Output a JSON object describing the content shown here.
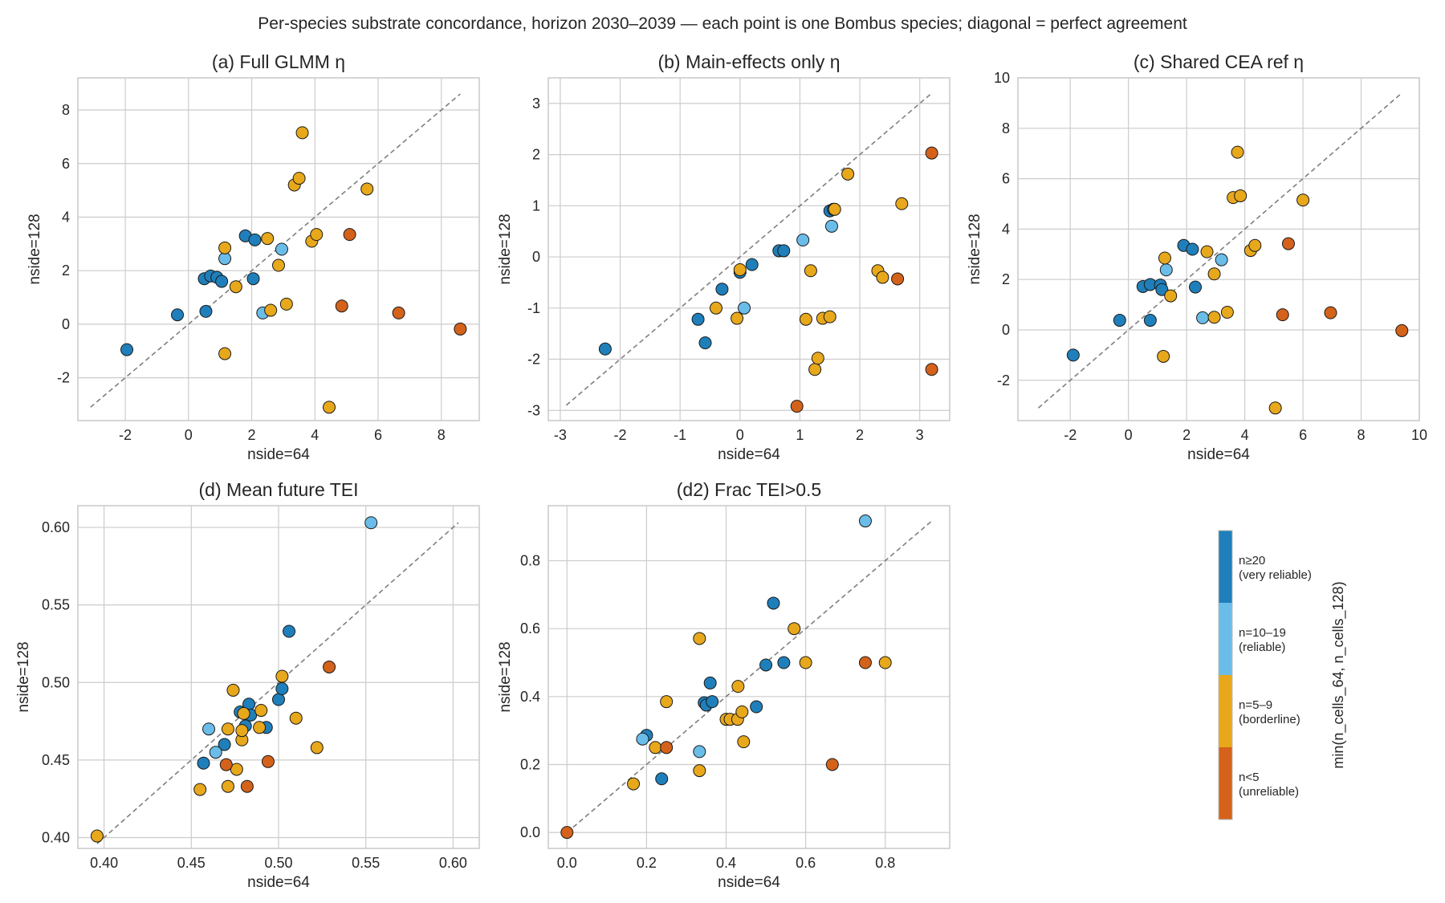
{
  "suptitle": "Per-species substrate concordance, horizon 2030–2039 — each point is one Bombus species; diagonal = perfect agreement",
  "colors": {
    "very_reliable": "#1f7fba",
    "reliable": "#6bbde9",
    "borderline": "#e8a81b",
    "unreliable": "#d4621a",
    "diagonal": "#7f7f7f",
    "grid": "#cccccc"
  },
  "colorbar": {
    "title": "min(n_cells_64, n_cells_128)",
    "labels": [
      {
        "line1": "n≥20",
        "line2": "(very reliable)"
      },
      {
        "line1": "n=10–19",
        "line2": "(reliable)"
      },
      {
        "line1": "n=5–9",
        "line2": "(borderline)"
      },
      {
        "line1": "n<5",
        "line2": "(unreliable)"
      }
    ]
  },
  "chart_data": [
    {
      "id": "a",
      "type": "scatter",
      "title": "(a) Full GLMM η",
      "xlabel": "nside=64",
      "ylabel": "nside=128",
      "xlim": [
        -3.5,
        9.2
      ],
      "ylim": [
        -3.6,
        9.2
      ],
      "xticks": [
        -2,
        0,
        2,
        4,
        6,
        8
      ],
      "yticks": [
        -2,
        0,
        2,
        4,
        6,
        8
      ],
      "diagonal": [
        -3.1,
        8.6
      ],
      "grid": true,
      "points": [
        {
          "x": -1.95,
          "y": -0.95,
          "c": "very_reliable"
        },
        {
          "x": -0.35,
          "y": 0.35,
          "c": "very_reliable"
        },
        {
          "x": 0.55,
          "y": 0.48,
          "c": "very_reliable"
        },
        {
          "x": 0.5,
          "y": 1.7,
          "c": "very_reliable"
        },
        {
          "x": 0.7,
          "y": 1.8,
          "c": "very_reliable"
        },
        {
          "x": 0.9,
          "y": 1.75,
          "c": "very_reliable"
        },
        {
          "x": 1.05,
          "y": 1.6,
          "c": "very_reliable"
        },
        {
          "x": 1.8,
          "y": 3.3,
          "c": "very_reliable"
        },
        {
          "x": 2.1,
          "y": 3.15,
          "c": "very_reliable"
        },
        {
          "x": 2.05,
          "y": 1.7,
          "c": "very_reliable"
        },
        {
          "x": 1.15,
          "y": 2.45,
          "c": "reliable"
        },
        {
          "x": 2.95,
          "y": 2.8,
          "c": "reliable"
        },
        {
          "x": 2.35,
          "y": 0.42,
          "c": "reliable"
        },
        {
          "x": 1.15,
          "y": 2.85,
          "c": "borderline"
        },
        {
          "x": 1.5,
          "y": 1.4,
          "c": "borderline"
        },
        {
          "x": 1.15,
          "y": -1.1,
          "c": "borderline"
        },
        {
          "x": 2.5,
          "y": 3.2,
          "c": "borderline"
        },
        {
          "x": 2.6,
          "y": 0.52,
          "c": "borderline"
        },
        {
          "x": 2.85,
          "y": 2.2,
          "c": "borderline"
        },
        {
          "x": 3.1,
          "y": 0.75,
          "c": "borderline"
        },
        {
          "x": 3.35,
          "y": 5.2,
          "c": "borderline"
        },
        {
          "x": 3.5,
          "y": 5.45,
          "c": "borderline"
        },
        {
          "x": 3.6,
          "y": 7.15,
          "c": "borderline"
        },
        {
          "x": 3.9,
          "y": 3.1,
          "c": "borderline"
        },
        {
          "x": 4.05,
          "y": 3.35,
          "c": "borderline"
        },
        {
          "x": 4.45,
          "y": -3.1,
          "c": "borderline"
        },
        {
          "x": 5.65,
          "y": 5.05,
          "c": "borderline"
        },
        {
          "x": 4.85,
          "y": 0.68,
          "c": "unreliable"
        },
        {
          "x": 5.1,
          "y": 3.35,
          "c": "unreliable"
        },
        {
          "x": 6.65,
          "y": 0.42,
          "c": "unreliable"
        },
        {
          "x": 8.6,
          "y": -0.18,
          "c": "unreliable"
        }
      ]
    },
    {
      "id": "b",
      "type": "scatter",
      "title": "(b) Main-effects only η",
      "xlabel": "nside=64",
      "ylabel": "nside=128",
      "xlim": [
        -3.2,
        3.5
      ],
      "ylim": [
        -3.2,
        3.5
      ],
      "xticks": [
        -3,
        -2,
        -1,
        0,
        1,
        2,
        3
      ],
      "yticks": [
        -3,
        -2,
        -1,
        0,
        1,
        2,
        3
      ],
      "diagonal": [
        -2.9,
        3.2
      ],
      "grid": true,
      "points": [
        {
          "x": -2.25,
          "y": -1.8,
          "c": "very_reliable"
        },
        {
          "x": -0.7,
          "y": -1.22,
          "c": "very_reliable"
        },
        {
          "x": -0.58,
          "y": -1.68,
          "c": "very_reliable"
        },
        {
          "x": -0.3,
          "y": -0.63,
          "c": "very_reliable"
        },
        {
          "x": 0.0,
          "y": -0.3,
          "c": "very_reliable"
        },
        {
          "x": 0.2,
          "y": -0.15,
          "c": "very_reliable"
        },
        {
          "x": 0.65,
          "y": 0.12,
          "c": "very_reliable"
        },
        {
          "x": 0.73,
          "y": 0.12,
          "c": "very_reliable"
        },
        {
          "x": 1.5,
          "y": 0.9,
          "c": "very_reliable"
        },
        {
          "x": 1.56,
          "y": 0.93,
          "c": "very_reliable"
        },
        {
          "x": 0.07,
          "y": -1.0,
          "c": "reliable"
        },
        {
          "x": 1.05,
          "y": 0.33,
          "c": "reliable"
        },
        {
          "x": 1.53,
          "y": 0.6,
          "c": "reliable"
        },
        {
          "x": -0.4,
          "y": -1.0,
          "c": "borderline"
        },
        {
          "x": -0.05,
          "y": -1.2,
          "c": "borderline"
        },
        {
          "x": 0.0,
          "y": -0.25,
          "c": "borderline"
        },
        {
          "x": 1.1,
          "y": -1.22,
          "c": "borderline"
        },
        {
          "x": 1.18,
          "y": -0.27,
          "c": "borderline"
        },
        {
          "x": 1.25,
          "y": -2.2,
          "c": "borderline"
        },
        {
          "x": 1.3,
          "y": -1.98,
          "c": "borderline"
        },
        {
          "x": 1.38,
          "y": -1.2,
          "c": "borderline"
        },
        {
          "x": 1.5,
          "y": -1.17,
          "c": "borderline"
        },
        {
          "x": 1.58,
          "y": 0.93,
          "c": "borderline"
        },
        {
          "x": 1.8,
          "y": 1.62,
          "c": "borderline"
        },
        {
          "x": 2.3,
          "y": -0.27,
          "c": "borderline"
        },
        {
          "x": 2.38,
          "y": -0.4,
          "c": "borderline"
        },
        {
          "x": 2.7,
          "y": 1.04,
          "c": "borderline"
        },
        {
          "x": 0.95,
          "y": -2.92,
          "c": "unreliable"
        },
        {
          "x": 2.63,
          "y": -0.43,
          "c": "unreliable"
        },
        {
          "x": 3.2,
          "y": 2.03,
          "c": "unreliable"
        },
        {
          "x": 3.2,
          "y": -2.2,
          "c": "unreliable"
        }
      ]
    },
    {
      "id": "c",
      "type": "scatter",
      "title": "(c) Shared CEA ref η",
      "xlabel": "nside=64",
      "ylabel": "nside=128",
      "xlim": [
        -3.8,
        10.0
      ],
      "ylim": [
        -3.6,
        10.0
      ],
      "xticks": [
        -2,
        0,
        2,
        4,
        6,
        8,
        10
      ],
      "yticks": [
        -2,
        0,
        2,
        4,
        6,
        8,
        10
      ],
      "diagonal": [
        -3.1,
        9.4
      ],
      "grid": true,
      "points": [
        {
          "x": -1.9,
          "y": -1.0,
          "c": "very_reliable"
        },
        {
          "x": -0.3,
          "y": 0.38,
          "c": "very_reliable"
        },
        {
          "x": 0.5,
          "y": 1.72,
          "c": "very_reliable"
        },
        {
          "x": 0.75,
          "y": 1.8,
          "c": "very_reliable"
        },
        {
          "x": 0.75,
          "y": 0.38,
          "c": "very_reliable"
        },
        {
          "x": 1.1,
          "y": 1.78,
          "c": "very_reliable"
        },
        {
          "x": 1.15,
          "y": 1.6,
          "c": "very_reliable"
        },
        {
          "x": 1.9,
          "y": 3.35,
          "c": "very_reliable"
        },
        {
          "x": 2.2,
          "y": 3.2,
          "c": "very_reliable"
        },
        {
          "x": 2.3,
          "y": 1.7,
          "c": "very_reliable"
        },
        {
          "x": 1.3,
          "y": 2.38,
          "c": "reliable"
        },
        {
          "x": 2.55,
          "y": 0.48,
          "c": "reliable"
        },
        {
          "x": 3.2,
          "y": 2.78,
          "c": "reliable"
        },
        {
          "x": 1.25,
          "y": 2.85,
          "c": "borderline"
        },
        {
          "x": 1.45,
          "y": 1.35,
          "c": "borderline"
        },
        {
          "x": 1.2,
          "y": -1.05,
          "c": "borderline"
        },
        {
          "x": 2.7,
          "y": 3.1,
          "c": "borderline"
        },
        {
          "x": 2.95,
          "y": 2.22,
          "c": "borderline"
        },
        {
          "x": 2.95,
          "y": 0.5,
          "c": "borderline"
        },
        {
          "x": 3.4,
          "y": 0.7,
          "c": "borderline"
        },
        {
          "x": 3.6,
          "y": 5.25,
          "c": "borderline"
        },
        {
          "x": 3.75,
          "y": 7.05,
          "c": "borderline"
        },
        {
          "x": 3.85,
          "y": 5.32,
          "c": "borderline"
        },
        {
          "x": 4.2,
          "y": 3.15,
          "c": "borderline"
        },
        {
          "x": 4.35,
          "y": 3.35,
          "c": "borderline"
        },
        {
          "x": 5.05,
          "y": -3.1,
          "c": "borderline"
        },
        {
          "x": 6.0,
          "y": 5.15,
          "c": "borderline"
        },
        {
          "x": 5.3,
          "y": 0.6,
          "c": "unreliable"
        },
        {
          "x": 5.5,
          "y": 3.42,
          "c": "unreliable"
        },
        {
          "x": 6.95,
          "y": 0.68,
          "c": "unreliable"
        },
        {
          "x": 9.4,
          "y": -0.03,
          "c": "unreliable"
        }
      ]
    },
    {
      "id": "d",
      "type": "scatter",
      "title": "(d) Mean future TEI",
      "xlabel": "nside=64",
      "ylabel": "nside=128",
      "xlim": [
        0.385,
        0.615
      ],
      "ylim": [
        0.393,
        0.614
      ],
      "xticks": [
        0.4,
        0.45,
        0.5,
        0.55,
        0.6
      ],
      "xtick_labels": [
        "0.40",
        "0.45",
        "0.50",
        "0.55",
        "0.60"
      ],
      "yticks": [
        0.4,
        0.45,
        0.5,
        0.55,
        0.6
      ],
      "ytick_labels": [
        "0.40",
        "0.45",
        "0.50",
        "0.55",
        "0.60"
      ],
      "diagonal": [
        0.396,
        0.603
      ],
      "grid": true,
      "points": [
        {
          "x": 0.457,
          "y": 0.448,
          "c": "very_reliable"
        },
        {
          "x": 0.469,
          "y": 0.46,
          "c": "very_reliable"
        },
        {
          "x": 0.478,
          "y": 0.481,
          "c": "very_reliable"
        },
        {
          "x": 0.481,
          "y": 0.472,
          "c": "very_reliable"
        },
        {
          "x": 0.483,
          "y": 0.486,
          "c": "very_reliable"
        },
        {
          "x": 0.484,
          "y": 0.479,
          "c": "very_reliable"
        },
        {
          "x": 0.493,
          "y": 0.471,
          "c": "very_reliable"
        },
        {
          "x": 0.5,
          "y": 0.489,
          "c": "very_reliable"
        },
        {
          "x": 0.502,
          "y": 0.496,
          "c": "very_reliable"
        },
        {
          "x": 0.506,
          "y": 0.533,
          "c": "very_reliable"
        },
        {
          "x": 0.46,
          "y": 0.47,
          "c": "reliable"
        },
        {
          "x": 0.464,
          "y": 0.455,
          "c": "reliable"
        },
        {
          "x": 0.553,
          "y": 0.603,
          "c": "reliable"
        },
        {
          "x": 0.396,
          "y": 0.401,
          "c": "borderline"
        },
        {
          "x": 0.455,
          "y": 0.431,
          "c": "borderline"
        },
        {
          "x": 0.471,
          "y": 0.433,
          "c": "borderline"
        },
        {
          "x": 0.471,
          "y": 0.47,
          "c": "borderline"
        },
        {
          "x": 0.474,
          "y": 0.495,
          "c": "borderline"
        },
        {
          "x": 0.476,
          "y": 0.444,
          "c": "borderline"
        },
        {
          "x": 0.479,
          "y": 0.463,
          "c": "borderline"
        },
        {
          "x": 0.479,
          "y": 0.469,
          "c": "borderline"
        },
        {
          "x": 0.48,
          "y": 0.48,
          "c": "borderline"
        },
        {
          "x": 0.489,
          "y": 0.471,
          "c": "borderline"
        },
        {
          "x": 0.49,
          "y": 0.482,
          "c": "borderline"
        },
        {
          "x": 0.502,
          "y": 0.504,
          "c": "borderline"
        },
        {
          "x": 0.51,
          "y": 0.477,
          "c": "borderline"
        },
        {
          "x": 0.522,
          "y": 0.458,
          "c": "borderline"
        },
        {
          "x": 0.47,
          "y": 0.447,
          "c": "unreliable"
        },
        {
          "x": 0.482,
          "y": 0.433,
          "c": "unreliable"
        },
        {
          "x": 0.494,
          "y": 0.449,
          "c": "unreliable"
        },
        {
          "x": 0.529,
          "y": 0.51,
          "c": "unreliable"
        }
      ]
    },
    {
      "id": "d2",
      "type": "scatter",
      "title": "(d2) Frac TEI>0.5",
      "xlabel": "nside=64",
      "ylabel": "nside=128",
      "xlim": [
        -0.047,
        0.962
      ],
      "ylim": [
        -0.047,
        0.962
      ],
      "xticks": [
        0.0,
        0.2,
        0.4,
        0.6,
        0.8
      ],
      "xtick_labels": [
        "0.0",
        "0.2",
        "0.4",
        "0.6",
        "0.8"
      ],
      "yticks": [
        0.0,
        0.2,
        0.4,
        0.6,
        0.8
      ],
      "ytick_labels": [
        "0.0",
        "0.2",
        "0.4",
        "0.6",
        "0.8"
      ],
      "diagonal": [
        0.0,
        0.917
      ],
      "grid": true,
      "points": [
        {
          "x": 0.2,
          "y": 0.286,
          "c": "very_reliable"
        },
        {
          "x": 0.238,
          "y": 0.158,
          "c": "very_reliable"
        },
        {
          "x": 0.345,
          "y": 0.382,
          "c": "very_reliable"
        },
        {
          "x": 0.35,
          "y": 0.375,
          "c": "very_reliable"
        },
        {
          "x": 0.36,
          "y": 0.44,
          "c": "very_reliable"
        },
        {
          "x": 0.365,
          "y": 0.385,
          "c": "very_reliable"
        },
        {
          "x": 0.476,
          "y": 0.37,
          "c": "very_reliable"
        },
        {
          "x": 0.5,
          "y": 0.493,
          "c": "very_reliable"
        },
        {
          "x": 0.519,
          "y": 0.675,
          "c": "very_reliable"
        },
        {
          "x": 0.545,
          "y": 0.5,
          "c": "very_reliable"
        },
        {
          "x": 0.19,
          "y": 0.275,
          "c": "reliable"
        },
        {
          "x": 0.333,
          "y": 0.238,
          "c": "reliable"
        },
        {
          "x": 0.75,
          "y": 0.917,
          "c": "reliable"
        },
        {
          "x": 0.167,
          "y": 0.143,
          "c": "borderline"
        },
        {
          "x": 0.222,
          "y": 0.25,
          "c": "borderline"
        },
        {
          "x": 0.25,
          "y": 0.385,
          "c": "borderline"
        },
        {
          "x": 0.333,
          "y": 0.182,
          "c": "borderline"
        },
        {
          "x": 0.333,
          "y": 0.571,
          "c": "borderline"
        },
        {
          "x": 0.4,
          "y": 0.333,
          "c": "borderline"
        },
        {
          "x": 0.41,
          "y": 0.333,
          "c": "borderline"
        },
        {
          "x": 0.429,
          "y": 0.333,
          "c": "borderline"
        },
        {
          "x": 0.43,
          "y": 0.43,
          "c": "borderline"
        },
        {
          "x": 0.44,
          "y": 0.355,
          "c": "borderline"
        },
        {
          "x": 0.444,
          "y": 0.267,
          "c": "borderline"
        },
        {
          "x": 0.571,
          "y": 0.6,
          "c": "borderline"
        },
        {
          "x": 0.6,
          "y": 0.5,
          "c": "borderline"
        },
        {
          "x": 0.8,
          "y": 0.5,
          "c": "borderline"
        },
        {
          "x": 0.0,
          "y": 0.0,
          "c": "unreliable"
        },
        {
          "x": 0.25,
          "y": 0.25,
          "c": "unreliable"
        },
        {
          "x": 0.667,
          "y": 0.2,
          "c": "unreliable"
        },
        {
          "x": 0.75,
          "y": 0.5,
          "c": "unreliable"
        }
      ]
    }
  ]
}
